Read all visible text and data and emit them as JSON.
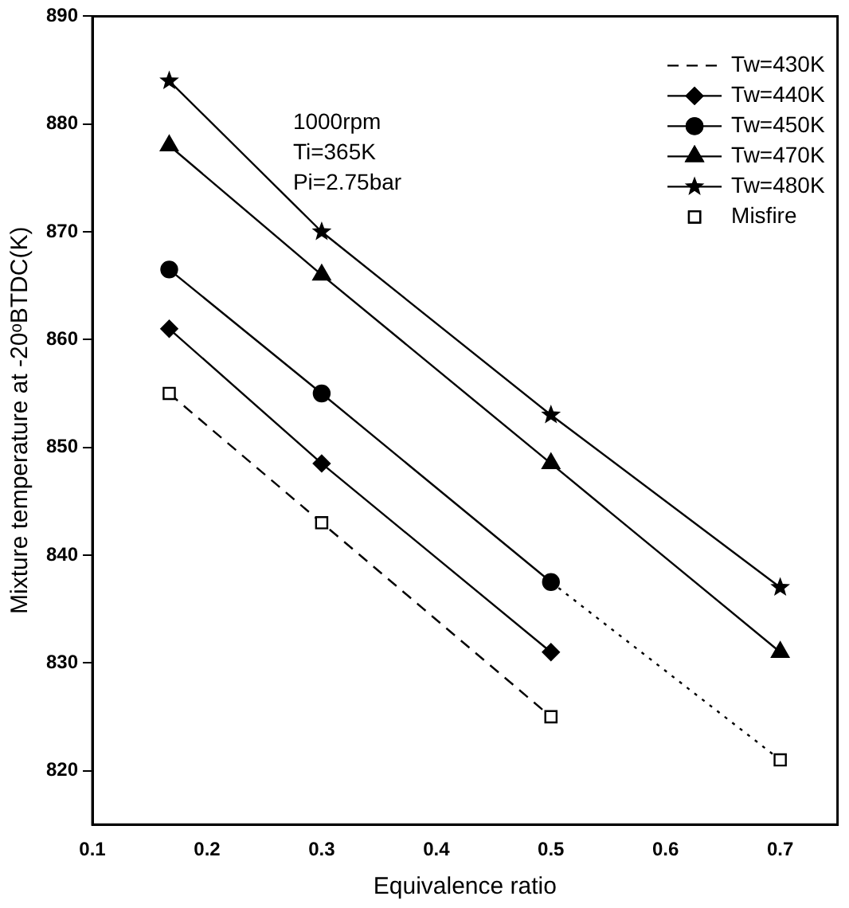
{
  "chart_data": {
    "type": "line",
    "xlabel": "Equivalence ratio",
    "ylabel": "Mixture temperature at -20ᵒBTDC(K)",
    "xlim": [
      0.1,
      0.75
    ],
    "xticks": [
      0.1,
      0.2,
      0.3,
      0.4,
      0.5,
      0.6,
      0.7
    ],
    "ylim": [
      815,
      890
    ],
    "yticks": [
      820,
      830,
      840,
      850,
      860,
      870,
      880,
      890
    ],
    "grid": false,
    "legend": "top right",
    "annotations": [
      "1000rpm",
      "Ti=365K",
      "Pi=2.75bar"
    ],
    "series": [
      {
        "name": "Tw=430K",
        "color": "#000000",
        "x": [
          0.167,
          0.3,
          0.5
        ],
        "values": [
          855,
          843,
          825
        ],
        "marker": "none",
        "line_style": "dashed"
      },
      {
        "name": "Tw=440K",
        "color": "#000000",
        "x": [
          0.167,
          0.3,
          0.5
        ],
        "values": [
          861,
          848.5,
          831
        ],
        "marker": "diamond",
        "line_style": "solid"
      },
      {
        "name": "Tw=450K",
        "color": "#000000",
        "x": [
          0.167,
          0.3,
          0.5
        ],
        "values": [
          866.5,
          855,
          837.5
        ],
        "marker": "circle",
        "line_style": "solid"
      },
      {
        "name": "Tw=470K",
        "color": "#000000",
        "x": [
          0.167,
          0.3,
          0.5,
          0.7
        ],
        "values": [
          878,
          866,
          848.5,
          831
        ],
        "marker": "triangle",
        "line_style": "solid"
      },
      {
        "name": "Tw=480K",
        "color": "#000000",
        "x": [
          0.167,
          0.3,
          0.5,
          0.7
        ],
        "values": [
          884,
          870,
          853,
          837
        ],
        "marker": "star",
        "line_style": "solid"
      },
      {
        "color": "#000000",
        "x": [
          0.5,
          0.7
        ],
        "values": [
          837.5,
          821
        ],
        "marker": "none",
        "line_style": "dotted"
      },
      {
        "name": "Misfire",
        "type": "scatter",
        "color": "#000000",
        "x": [
          0.167,
          0.3,
          0.5,
          0.7
        ],
        "values": [
          855,
          843,
          825,
          821
        ],
        "marker": "square"
      }
    ]
  }
}
